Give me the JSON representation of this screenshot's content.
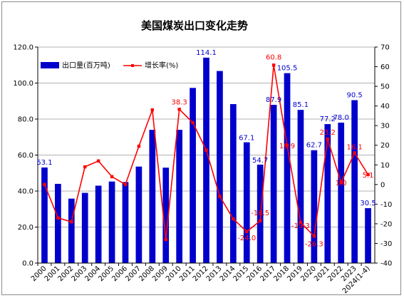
{
  "chart_data": {
    "type": "bar+line",
    "title": "美国煤炭出口变化走势",
    "categories": [
      "2000",
      "2001",
      "2002",
      "2003",
      "2004",
      "2005",
      "2006",
      "2007",
      "2008",
      "2009",
      "2010",
      "2011",
      "2012",
      "2013",
      "2014",
      "2015",
      "2016",
      "2017",
      "2018",
      "2019",
      "2020",
      "2021",
      "2022",
      "2023",
      "2024(1-4)"
    ],
    "series": [
      {
        "name": "出口量(百万吨)",
        "kind": "bar",
        "axis": "left",
        "color": "#0000cc",
        "values": [
          53.1,
          44.0,
          35.8,
          39.0,
          43.0,
          45.3,
          45.0,
          53.6,
          74.0,
          53.0,
          74.0,
          97.3,
          114.1,
          106.7,
          88.3,
          67.1,
          54.7,
          87.9,
          105.5,
          85.1,
          62.7,
          77.2,
          78.0,
          90.5,
          30.5
        ]
      },
      {
        "name": "增长率(%)",
        "kind": "line",
        "axis": "right",
        "color": "#ff0000",
        "values": [
          0.0,
          -17.0,
          -19.0,
          9.0,
          12.0,
          4.0,
          0.0,
          19.5,
          38.0,
          -28.0,
          38.3,
          31.5,
          17.5,
          -6.0,
          -17.5,
          -24.0,
          -18.5,
          60.8,
          19.9,
          -19.3,
          -26.3,
          23.2,
          1.0,
          16.1,
          5.1
        ]
      }
    ],
    "bar_labels": [
      {
        "index": 0,
        "text": "53.1"
      },
      {
        "index": 12,
        "text": "114.1"
      },
      {
        "index": 15,
        "text": "67.1"
      },
      {
        "index": 16,
        "text": "54.7"
      },
      {
        "index": 17,
        "text": "87.9"
      },
      {
        "index": 18,
        "text": "105.5"
      },
      {
        "index": 19,
        "text": "85.1"
      },
      {
        "index": 20,
        "text": "62.7"
      },
      {
        "index": 21,
        "text": "77.2"
      },
      {
        "index": 22,
        "text": "78.0"
      },
      {
        "index": 23,
        "text": "90.5"
      },
      {
        "index": 24,
        "text": "30.5"
      }
    ],
    "line_labels": [
      {
        "index": 10,
        "text": "38.3"
      },
      {
        "index": 15,
        "text": "-24.0"
      },
      {
        "index": 16,
        "text": "-18.5"
      },
      {
        "index": 17,
        "text": "60.8"
      },
      {
        "index": 18,
        "text": "19.9"
      },
      {
        "index": 19,
        "text": "-19.3"
      },
      {
        "index": 20,
        "text": "-26.3"
      },
      {
        "index": 21,
        "text": "23.2"
      },
      {
        "index": 22,
        "text": "1.0"
      },
      {
        "index": 23,
        "text": "16.1"
      },
      {
        "index": 24,
        "text": "5.1"
      }
    ],
    "left_axis": {
      "ylim": [
        0,
        120
      ],
      "ticks": [
        "0.0",
        "20.0",
        "40.0",
        "60.0",
        "80.0",
        "100.0",
        "120.0"
      ]
    },
    "right_axis": {
      "ylim": [
        -40,
        70
      ],
      "ticks": [
        "-40",
        "-30",
        "-20",
        "-10",
        "0",
        "10",
        "20",
        "30",
        "40",
        "50",
        "60",
        "70"
      ]
    },
    "grid": true,
    "legend_position": "top-left"
  }
}
